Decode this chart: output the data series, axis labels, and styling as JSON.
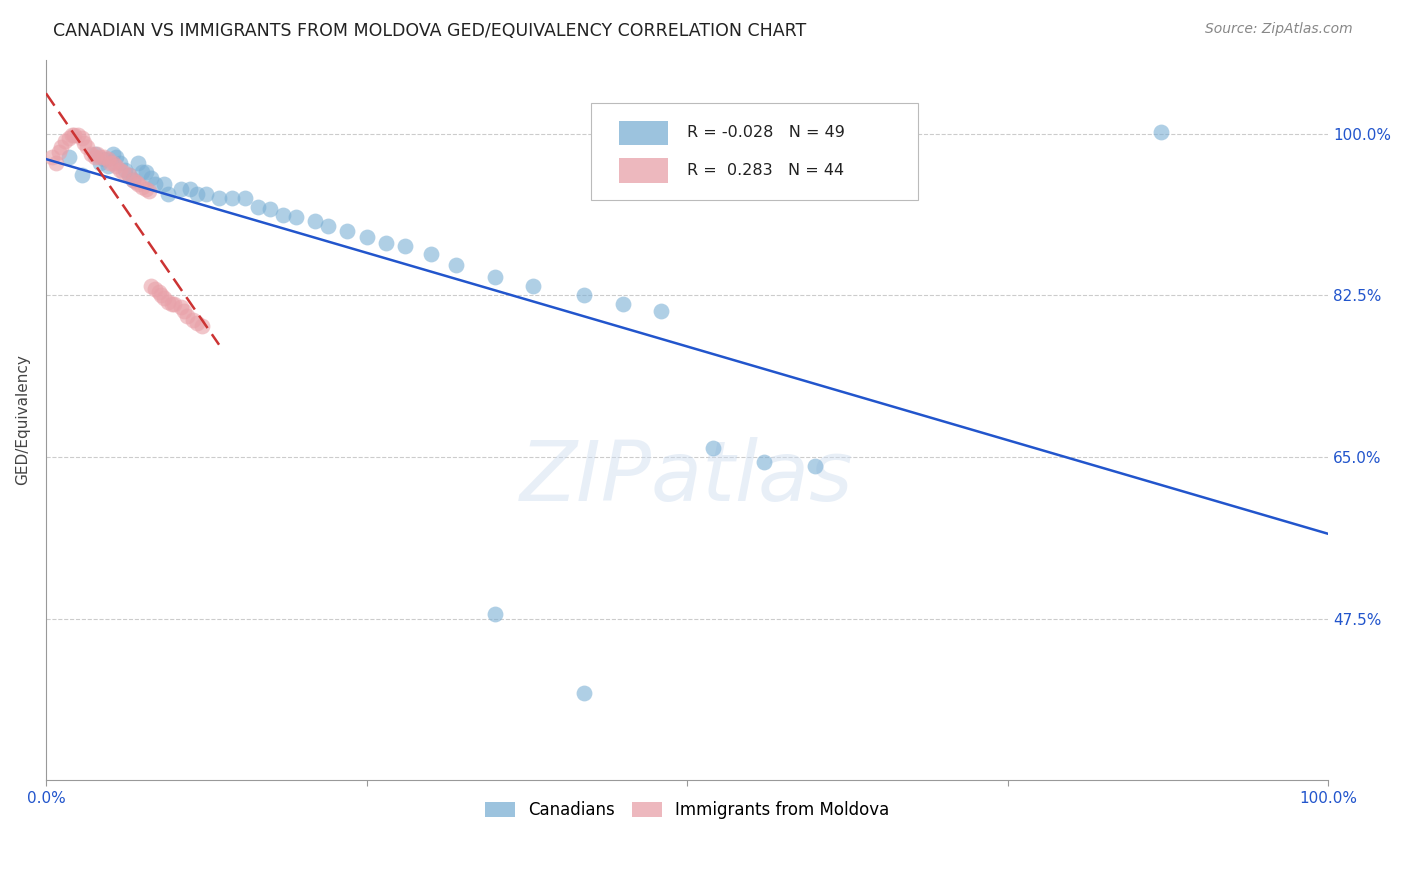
{
  "title": "CANADIAN VS IMMIGRANTS FROM MOLDOVA GED/EQUIVALENCY CORRELATION CHART",
  "source": "Source: ZipAtlas.com",
  "ylabel": "GED/Equivalency",
  "ytick_labels": [
    "100.0%",
    "82.5%",
    "65.0%",
    "47.5%"
  ],
  "ytick_values": [
    1.0,
    0.825,
    0.65,
    0.475
  ],
  "xlim": [
    0.0,
    1.0
  ],
  "ylim": [
    0.3,
    1.08
  ],
  "r1": "-0.028",
  "n1": "49",
  "r2": "0.283",
  "n2": "44",
  "color_blue": "#7bafd4",
  "color_pink": "#e8a0a8",
  "trendline1_color": "#2255cc",
  "trendline2_color": "#cc3333",
  "background_color": "#ffffff",
  "canadians_x": [
    0.018,
    0.028,
    0.038,
    0.042,
    0.045,
    0.048,
    0.052,
    0.055,
    0.058,
    0.062,
    0.065,
    0.068,
    0.072,
    0.075,
    0.078,
    0.082,
    0.085,
    0.092,
    0.095,
    0.105,
    0.112,
    0.118,
    0.125,
    0.135,
    0.145,
    0.155,
    0.165,
    0.175,
    0.185,
    0.195,
    0.21,
    0.22,
    0.235,
    0.25,
    0.265,
    0.28,
    0.3,
    0.32,
    0.35,
    0.38,
    0.42,
    0.45,
    0.48,
    0.52,
    0.56,
    0.6,
    0.35,
    0.42,
    0.87
  ],
  "canadians_y": [
    0.975,
    0.955,
    0.978,
    0.968,
    0.972,
    0.965,
    0.978,
    0.975,
    0.968,
    0.96,
    0.955,
    0.95,
    0.968,
    0.958,
    0.958,
    0.952,
    0.945,
    0.945,
    0.935,
    0.94,
    0.94,
    0.935,
    0.935,
    0.93,
    0.93,
    0.93,
    0.92,
    0.918,
    0.912,
    0.91,
    0.905,
    0.9,
    0.895,
    0.888,
    0.882,
    0.878,
    0.87,
    0.858,
    0.845,
    0.835,
    0.825,
    0.815,
    0.808,
    0.66,
    0.645,
    0.64,
    0.48,
    0.395,
    1.002
  ],
  "moldova_x": [
    0.005,
    0.008,
    0.01,
    0.012,
    0.015,
    0.018,
    0.02,
    0.022,
    0.025,
    0.028,
    0.03,
    0.032,
    0.035,
    0.038,
    0.04,
    0.042,
    0.045,
    0.048,
    0.05,
    0.052,
    0.055,
    0.058,
    0.06,
    0.065,
    0.068,
    0.07,
    0.072,
    0.075,
    0.078,
    0.08,
    0.082,
    0.085,
    0.088,
    0.09,
    0.092,
    0.095,
    0.098,
    0.1,
    0.105,
    0.108,
    0.11,
    0.115,
    0.118,
    0.122
  ],
  "moldova_y": [
    0.975,
    0.968,
    0.98,
    0.985,
    0.992,
    0.995,
    0.998,
    0.998,
    0.998,
    0.995,
    0.99,
    0.985,
    0.978,
    0.975,
    0.978,
    0.975,
    0.975,
    0.972,
    0.968,
    0.968,
    0.965,
    0.96,
    0.958,
    0.955,
    0.95,
    0.948,
    0.945,
    0.942,
    0.94,
    0.938,
    0.835,
    0.832,
    0.828,
    0.825,
    0.822,
    0.818,
    0.815,
    0.815,
    0.812,
    0.808,
    0.802,
    0.798,
    0.795,
    0.792
  ]
}
